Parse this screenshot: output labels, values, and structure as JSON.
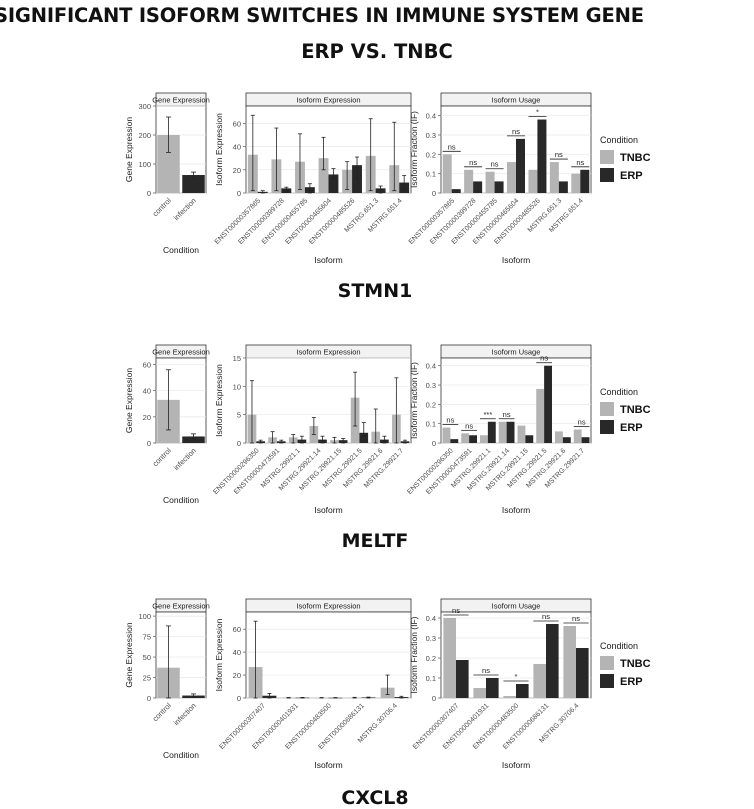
{
  "title": "SIGNIFICANT ISOFORM SWITCHES IN IMMUNE SYSTEM GENE",
  "subtitle": "ERP VS. TNBC",
  "colors": {
    "TNBC": "#b4b4b4",
    "ERP": "#282828",
    "panel_bg": "#ffffff",
    "strip_bg": "#f2f2f2",
    "grid": "#e6e6e6",
    "axis_text": "#4d4d4d"
  },
  "legend": {
    "title": "Condition",
    "items": [
      "TNBC",
      "ERP"
    ]
  },
  "chart_data": [
    {
      "gene": "STMN1",
      "gene_expression": {
        "type": "bar",
        "strip": "Gene Expression",
        "xlabel": "Condition",
        "ylabel": "Gene Expression",
        "categories": [
          "control",
          "infection"
        ],
        "values": [
          200,
          62
        ],
        "error": [
          [
            140,
            262
          ],
          [
            50,
            72
          ]
        ],
        "ylim": [
          0,
          300
        ],
        "yticks": [
          0,
          100,
          200,
          300
        ],
        "colors": [
          "TNBC",
          "ERP"
        ]
      },
      "isoform_expression": {
        "type": "bar",
        "strip": "Isoform Expression",
        "xlabel": "Isoform",
        "ylabel": "Isoform Expression",
        "categories": [
          "ENST00000357865",
          "ENST00000399728",
          "ENST00000455785",
          "ENST00000465604",
          "ENST00000485526",
          "MSTRG.651.3",
          "MSTRG.651.4"
        ],
        "series": [
          {
            "name": "TNBC",
            "values": [
              33,
              29,
              27,
              30,
              20,
              32,
              24
            ],
            "err_low": [
              2,
              2,
              3,
              20,
              3,
              2,
              2
            ],
            "err_high": [
              67,
              56,
              51,
              48,
              27,
              64,
              61
            ]
          },
          {
            "name": "ERP",
            "values": [
              1,
              4,
              5,
              16,
              24,
              4,
              9
            ],
            "err_low": [
              0,
              1,
              0,
              12,
              12,
              0,
              3
            ],
            "err_high": [
              2,
              5,
              8,
              21,
              31,
              6,
              15
            ]
          }
        ],
        "ylim": [
          0,
          75
        ],
        "yticks": [
          0,
          20,
          40,
          60
        ]
      },
      "isoform_usage": {
        "type": "bar",
        "strip": "Isoform Usage",
        "xlabel": "Isoform",
        "ylabel": "Isoform Fraction (IF)",
        "categories": [
          "ENST00000357865",
          "ENST00000399728",
          "ENST00000455785",
          "ENST00000465604",
          "ENST00000485526",
          "MSTRG.651.3",
          "MSTRG.651.4"
        ],
        "series": [
          {
            "name": "TNBC",
            "values": [
              0.2,
              0.12,
              0.11,
              0.16,
              0.12,
              0.16,
              0.1
            ]
          },
          {
            "name": "ERP",
            "values": [
              0.02,
              0.06,
              0.06,
              0.28,
              0.38,
              0.06,
              0.12
            ]
          }
        ],
        "significance": [
          "ns",
          "ns",
          "ns",
          "ns",
          "*",
          "ns",
          "ns"
        ],
        "ylim": [
          0,
          0.45
        ],
        "yticks": [
          0,
          0.1,
          0.2,
          0.3,
          0.4
        ]
      }
    },
    {
      "gene": "MELTF",
      "gene_expression": {
        "type": "bar",
        "strip": "Gene Expression",
        "xlabel": "Condition",
        "ylabel": "Gene Expression",
        "categories": [
          "control",
          "infection"
        ],
        "values": [
          33,
          5
        ],
        "error": [
          [
            10,
            56
          ],
          [
            3,
            7
          ]
        ],
        "ylim": [
          0,
          65
        ],
        "yticks": [
          0,
          20,
          40,
          60
        ],
        "colors": [
          "TNBC",
          "ERP"
        ]
      },
      "isoform_expression": {
        "type": "bar",
        "strip": "Isoform Expression",
        "xlabel": "Isoform",
        "ylabel": "Isoform Expression",
        "categories": [
          "ENST00000296350",
          "ENST00000473591",
          "MSTRG.29921.1",
          "MSTRG.29921.14",
          "MSTRG.29921.15",
          "MSTRG.29921.5",
          "MSTRG.29921.6",
          "MSTRG.29921.7"
        ],
        "series": [
          {
            "name": "TNBC",
            "values": [
              5,
              1,
              1,
              3,
              0.5,
              8,
              2,
              5
            ],
            "err_low": [
              0,
              0,
              0,
              1.5,
              0,
              3,
              0,
              0
            ],
            "err_high": [
              11,
              2,
              1.5,
              4.5,
              1,
              12.5,
              6,
              11.5
            ]
          },
          {
            "name": "ERP",
            "values": [
              0.3,
              0.3,
              0.6,
              0.6,
              0.5,
              1.8,
              0.6,
              0.3
            ],
            "err_low": [
              0,
              0,
              0,
              0,
              0,
              1.2,
              0,
              0
            ],
            "err_high": [
              0.5,
              0.5,
              1.2,
              1.2,
              0.8,
              3.6,
              1.2,
              0.5
            ]
          }
        ],
        "ylim": [
          0,
          15
        ],
        "yticks": [
          0,
          5,
          10,
          15
        ]
      },
      "isoform_usage": {
        "type": "bar",
        "strip": "Isoform Usage",
        "xlabel": "Isoform",
        "ylabel": "Isoform Fraction (IF)",
        "categories": [
          "ENST00000296350",
          "ENST00000473591",
          "MSTRG.29921.1",
          "MSTRG.29921.14",
          "MSTRG.29921.15",
          "MSTRG.29921.5",
          "MSTRG.29921.6",
          "MSTRG.29921.7"
        ],
        "series": [
          {
            "name": "TNBC",
            "values": [
              0.08,
              0.05,
              0.04,
              0.11,
              0.09,
              0.28,
              0.06,
              0.07
            ]
          },
          {
            "name": "ERP",
            "values": [
              0.02,
              0.04,
              0.11,
              0.11,
              0.04,
              0.4,
              0.03,
              0.03
            ]
          }
        ],
        "significance": [
          "ns",
          "ns",
          "***",
          "ns",
          "",
          "ns",
          "",
          "ns"
        ],
        "ylim": [
          0,
          0.44
        ],
        "yticks": [
          0,
          0.1,
          0.2,
          0.3,
          0.4
        ]
      }
    },
    {
      "gene": "CXCL8",
      "gene_expression": {
        "type": "bar",
        "strip": "Gene Expression",
        "xlabel": "Condition",
        "ylabel": "Gene Expression",
        "categories": [
          "control",
          "infection"
        ],
        "values": [
          37,
          3
        ],
        "error": [
          [
            0,
            88
          ],
          [
            1,
            5
          ]
        ],
        "ylim": [
          0,
          105
        ],
        "yticks": [
          0,
          25,
          50,
          75,
          100
        ],
        "colors": [
          "TNBC",
          "ERP"
        ]
      },
      "isoform_expression": {
        "type": "bar",
        "strip": "Isoform Expression",
        "xlabel": "Isoform",
        "ylabel": "Isoform Expression",
        "categories": [
          "ENST00000307407",
          "ENST00000401931",
          "ENST00000483500",
          "ENST00000686131",
          "MSTRG.30706.4"
        ],
        "series": [
          {
            "name": "TNBC",
            "values": [
              27,
              0.3,
              0.2,
              0.4,
              9
            ],
            "err_low": [
              0,
              0,
              0,
              0,
              3
            ],
            "err_high": [
              67,
              0.5,
              0.4,
              0.6,
              20
            ]
          },
          {
            "name": "ERP",
            "values": [
              2,
              0.3,
              0.2,
              0.5,
              0.8
            ],
            "err_low": [
              0,
              0,
              0,
              0,
              0
            ],
            "err_high": [
              4,
              0.5,
              0.4,
              0.8,
              1.5
            ]
          }
        ],
        "ylim": [
          0,
          75
        ],
        "yticks": [
          0,
          20,
          40,
          60
        ]
      },
      "isoform_usage": {
        "type": "bar",
        "strip": "Isoform Usage",
        "xlabel": "Isoform",
        "ylabel": "Isoform Fraction (IF)",
        "categories": [
          "ENST00000307407",
          "ENST00000401931",
          "ENST00000483500",
          "ENST00000686131",
          "MSTRG.30706.4"
        ],
        "series": [
          {
            "name": "TNBC",
            "values": [
              0.4,
              0.05,
              0.01,
              0.17,
              0.36
            ]
          },
          {
            "name": "ERP",
            "values": [
              0.19,
              0.1,
              0.07,
              0.37,
              0.25
            ]
          }
        ],
        "significance": [
          "ns",
          "ns",
          "*",
          "ns",
          "ns"
        ],
        "ylim": [
          0,
          0.43
        ],
        "yticks": [
          0,
          0.1,
          0.2,
          0.3,
          0.4
        ]
      }
    }
  ]
}
